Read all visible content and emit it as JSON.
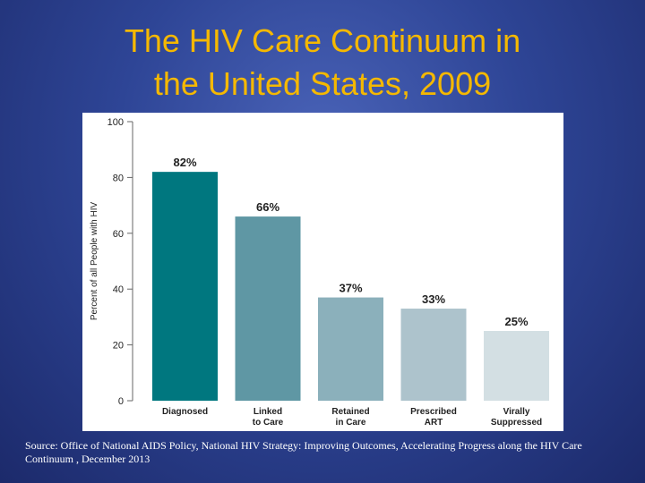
{
  "slide": {
    "title_line1": "The HIV Care Continuum in",
    "title_line2": "the United States, 2009",
    "source_line1": "Source: Office of National AIDS Policy, National HIV Strategy: Improving Outcomes, Accelerating Progress along the HIV Care",
    "source_line2": "Continuum , December 2013",
    "colors": {
      "title": "#f5b800",
      "background": "#2e4596"
    }
  },
  "chart_data": {
    "type": "bar",
    "title": "",
    "xlabel": "",
    "ylabel": "Percent of all People with HIV",
    "ylim": [
      0,
      100
    ],
    "yticks": [
      0,
      20,
      40,
      60,
      80,
      100
    ],
    "grid": false,
    "categories": [
      [
        "Diagnosed"
      ],
      [
        "Linked",
        "to Care"
      ],
      [
        "Retained",
        "in Care"
      ],
      [
        "Prescribed",
        "ART"
      ],
      [
        "Virally",
        "Suppressed"
      ]
    ],
    "values": [
      82,
      66,
      37,
      33,
      25
    ],
    "data_labels": [
      "82%",
      "66%",
      "37%",
      "33%",
      "25%"
    ],
    "bar_colors": [
      "#00777f",
      "#5f97a4",
      "#8bb0bb",
      "#adc3cc",
      "#d3dfe3"
    ]
  }
}
